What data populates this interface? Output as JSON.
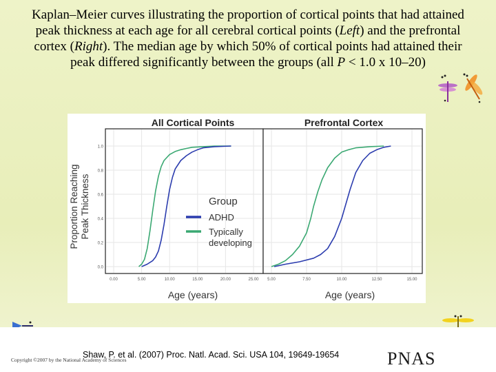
{
  "slide": {
    "title_line1": "Kaplan–Meier curves illustrating the proportion of cortical points that had attained",
    "title_line2": "peak thickness at each age for all cerebral cortical points (",
    "title_left": "Left",
    "title_line2b": ") and the prefrontal",
    "title_line3a": "cortex (",
    "title_right": "Right",
    "title_line3b": "). The median age by which 50% of cortical points had attained their",
    "title_line4a": "peak differed significantly between the groups (all ",
    "title_p": "P",
    "title_line4b": " < 1.0 x 10–20)",
    "citation": "Shaw, P. et al. (2007) Proc. Natl. Acad. Sci. USA 104, 19649-19654",
    "copyright": "Copyright ©2007 by the National Academy of Sciences",
    "journal_logo": "PNAS",
    "decor_icons": [
      "dragonfly-icon",
      "dragonfly-icon",
      "dragonfly-icon"
    ]
  },
  "chart_data": {
    "type": "line",
    "ylabel": "Proportion Reaching Peak Thickness",
    "xlabel": "Age (years)",
    "yticks": [
      "0.0",
      "0.2",
      "0.4",
      "0.6",
      "0.8",
      "1.0"
    ],
    "ylim": [
      0,
      1
    ],
    "legend": {
      "title": "Group",
      "position": "center-right of left panel",
      "entries": [
        {
          "label": "ADHD",
          "color": "#2b3cae"
        },
        {
          "label": "Typically developing",
          "color": "#3aa872"
        }
      ]
    },
    "panels": [
      {
        "title": "All Cortical Points",
        "xlim": [
          0,
          25
        ],
        "xticks": [
          "0.00",
          "5.00",
          "10.00",
          "15.00",
          "20.00",
          "25.00"
        ],
        "xtick_values": [
          0,
          5,
          10,
          15,
          20,
          25
        ],
        "series": [
          {
            "name": "Typically developing",
            "color": "#3aa872",
            "x": [
              4.5,
              5,
              5.5,
              6,
              6.5,
              7,
              7.5,
              8,
              8.5,
              9,
              10,
              11,
              12,
              13,
              14,
              16,
              18,
              21
            ],
            "y": [
              0.0,
              0.02,
              0.06,
              0.15,
              0.3,
              0.47,
              0.63,
              0.75,
              0.83,
              0.88,
              0.93,
              0.955,
              0.97,
              0.98,
              0.99,
              0.995,
              1.0,
              1.0
            ]
          },
          {
            "name": "ADHD",
            "color": "#2b3cae",
            "x": [
              5,
              6,
              7,
              7.5,
              8,
              8.5,
              9,
              9.5,
              10,
              10.5,
              11,
              12,
              13,
              14,
              15,
              16,
              18,
              21
            ],
            "y": [
              0.0,
              0.02,
              0.05,
              0.08,
              0.13,
              0.22,
              0.35,
              0.5,
              0.64,
              0.74,
              0.81,
              0.88,
              0.92,
              0.95,
              0.97,
              0.985,
              0.995,
              1.0
            ]
          }
        ]
      },
      {
        "title": "Prefrontal Cortex",
        "xlim": [
          5,
          15
        ],
        "xticks": [
          "5.00",
          "7.50",
          "10.00",
          "12.50",
          "15.00"
        ],
        "xtick_values": [
          5,
          7.5,
          10,
          12.5,
          15
        ],
        "series": [
          {
            "name": "Typically developing",
            "color": "#3aa872",
            "x": [
              5,
              5.5,
              6,
              6.5,
              7,
              7.5,
              7.8,
              8,
              8.3,
              8.6,
              9,
              9.5,
              10,
              10.5,
              11,
              12,
              13
            ],
            "y": [
              0.0,
              0.02,
              0.05,
              0.1,
              0.17,
              0.28,
              0.4,
              0.5,
              0.62,
              0.72,
              0.82,
              0.9,
              0.95,
              0.97,
              0.985,
              0.995,
              1.0
            ]
          },
          {
            "name": "ADHD",
            "color": "#2b3cae",
            "x": [
              5.2,
              6,
              7,
              8,
              8.5,
              9,
              9.5,
              10,
              10.3,
              10.6,
              11,
              11.5,
              12,
              12.5,
              13,
              13.5
            ],
            "y": [
              0.0,
              0.02,
              0.04,
              0.07,
              0.1,
              0.15,
              0.25,
              0.4,
              0.52,
              0.64,
              0.78,
              0.88,
              0.94,
              0.97,
              0.99,
              1.0
            ]
          }
        ]
      }
    ]
  }
}
